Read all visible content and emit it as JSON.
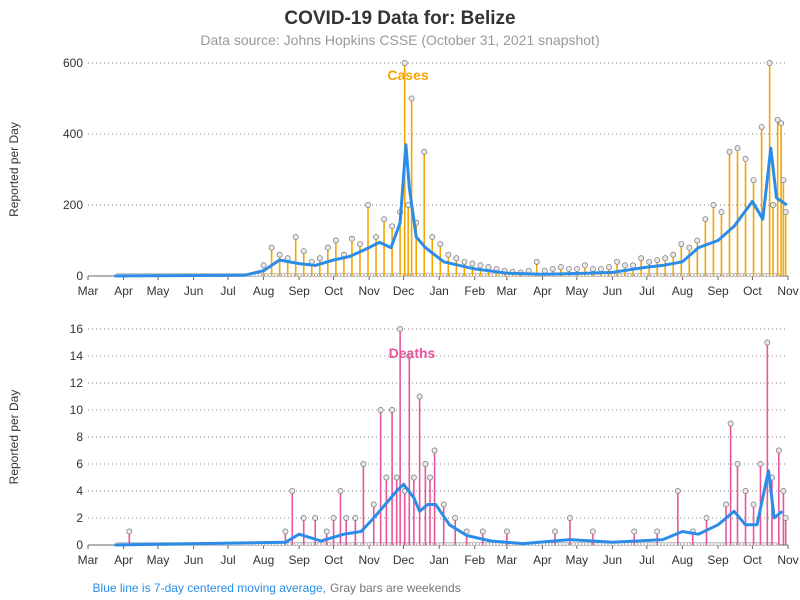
{
  "title": "COVID-19 Data for: Belize",
  "subtitle": "Data source: Johns Hopkins CSSE (October 31, 2021 snapshot)",
  "footnote": {
    "blue_text": "Blue line is 7-day centered moving average,",
    "gray_text": "Gray bars are weekends"
  },
  "colors": {
    "cases": "#f5a500",
    "deaths": "#e8559a",
    "moving_average": "#2b8de8",
    "weekend": "#999999",
    "grid": "#666666",
    "text": "#333333"
  },
  "chart_data": [
    {
      "type": "bar",
      "name": "cases-chart",
      "series_label": "Cases",
      "ylabel": "Reported per Day",
      "ylim": [
        0,
        600
      ],
      "yticks": [
        "0",
        "200",
        "400",
        "600"
      ],
      "xticks": [
        "Mar",
        "Apr",
        "May",
        "Jun",
        "Jul",
        "Aug",
        "Sep",
        "Oct",
        "Nov",
        "Dec",
        "Jan",
        "Feb",
        "Mar",
        "Apr",
        "May",
        "Jun",
        "Jul",
        "Aug",
        "Sep",
        "Oct",
        "Nov"
      ],
      "grid": "horizontal dotted",
      "bars": [
        {
          "date": "2020-08-01",
          "value": 30
        },
        {
          "date": "2020-08-08",
          "value": 80
        },
        {
          "date": "2020-08-15",
          "value": 60
        },
        {
          "date": "2020-08-22",
          "value": 50
        },
        {
          "date": "2020-08-29",
          "value": 110
        },
        {
          "date": "2020-09-05",
          "value": 70
        },
        {
          "date": "2020-09-12",
          "value": 40
        },
        {
          "date": "2020-09-19",
          "value": 50
        },
        {
          "date": "2020-09-26",
          "value": 80
        },
        {
          "date": "2020-10-03",
          "value": 100
        },
        {
          "date": "2020-10-10",
          "value": 60
        },
        {
          "date": "2020-10-17",
          "value": 105
        },
        {
          "date": "2020-10-24",
          "value": 90
        },
        {
          "date": "2020-10-31",
          "value": 200
        },
        {
          "date": "2020-11-07",
          "value": 110
        },
        {
          "date": "2020-11-14",
          "value": 160
        },
        {
          "date": "2020-11-21",
          "value": 140
        },
        {
          "date": "2020-11-28",
          "value": 180
        },
        {
          "date": "2020-12-02",
          "value": 600
        },
        {
          "date": "2020-12-05",
          "value": 200
        },
        {
          "date": "2020-12-08",
          "value": 500
        },
        {
          "date": "2020-12-12",
          "value": 150
        },
        {
          "date": "2020-12-19",
          "value": 350
        },
        {
          "date": "2020-12-26",
          "value": 110
        },
        {
          "date": "2021-01-02",
          "value": 90
        },
        {
          "date": "2021-01-09",
          "value": 60
        },
        {
          "date": "2021-01-16",
          "value": 50
        },
        {
          "date": "2021-01-23",
          "value": 40
        },
        {
          "date": "2021-01-30",
          "value": 35
        },
        {
          "date": "2021-02-06",
          "value": 30
        },
        {
          "date": "2021-02-13",
          "value": 25
        },
        {
          "date": "2021-02-20",
          "value": 20
        },
        {
          "date": "2021-02-27",
          "value": 15
        },
        {
          "date": "2021-03-06",
          "value": 12
        },
        {
          "date": "2021-03-13",
          "value": 10
        },
        {
          "date": "2021-03-20",
          "value": 15
        },
        {
          "date": "2021-03-27",
          "value": 40
        },
        {
          "date": "2021-04-03",
          "value": 15
        },
        {
          "date": "2021-04-10",
          "value": 20
        },
        {
          "date": "2021-04-17",
          "value": 25
        },
        {
          "date": "2021-04-24",
          "value": 20
        },
        {
          "date": "2021-05-01",
          "value": 20
        },
        {
          "date": "2021-05-08",
          "value": 30
        },
        {
          "date": "2021-05-15",
          "value": 20
        },
        {
          "date": "2021-05-22",
          "value": 20
        },
        {
          "date": "2021-05-29",
          "value": 25
        },
        {
          "date": "2021-06-05",
          "value": 40
        },
        {
          "date": "2021-06-12",
          "value": 30
        },
        {
          "date": "2021-06-19",
          "value": 30
        },
        {
          "date": "2021-06-26",
          "value": 50
        },
        {
          "date": "2021-07-03",
          "value": 40
        },
        {
          "date": "2021-07-10",
          "value": 45
        },
        {
          "date": "2021-07-17",
          "value": 50
        },
        {
          "date": "2021-07-24",
          "value": 60
        },
        {
          "date": "2021-07-31",
          "value": 90
        },
        {
          "date": "2021-08-07",
          "value": 80
        },
        {
          "date": "2021-08-14",
          "value": 100
        },
        {
          "date": "2021-08-21",
          "value": 160
        },
        {
          "date": "2021-08-28",
          "value": 200
        },
        {
          "date": "2021-09-04",
          "value": 180
        },
        {
          "date": "2021-09-11",
          "value": 350
        },
        {
          "date": "2021-09-18",
          "value": 360
        },
        {
          "date": "2021-09-25",
          "value": 330
        },
        {
          "date": "2021-10-02",
          "value": 270
        },
        {
          "date": "2021-10-09",
          "value": 420
        },
        {
          "date": "2021-10-16",
          "value": 600
        },
        {
          "date": "2021-10-19",
          "value": 200
        },
        {
          "date": "2021-10-23",
          "value": 440
        },
        {
          "date": "2021-10-26",
          "value": 430
        },
        {
          "date": "2021-10-28",
          "value": 270
        },
        {
          "date": "2021-10-30",
          "value": 180
        }
      ],
      "moving_average": [
        {
          "date": "2020-03-24",
          "value": 0
        },
        {
          "date": "2020-07-15",
          "value": 2
        },
        {
          "date": "2020-08-01",
          "value": 15
        },
        {
          "date": "2020-08-15",
          "value": 45
        },
        {
          "date": "2020-09-01",
          "value": 35
        },
        {
          "date": "2020-09-15",
          "value": 30
        },
        {
          "date": "2020-10-01",
          "value": 45
        },
        {
          "date": "2020-10-15",
          "value": 55
        },
        {
          "date": "2020-11-01",
          "value": 80
        },
        {
          "date": "2020-11-10",
          "value": 95
        },
        {
          "date": "2020-11-20",
          "value": 80
        },
        {
          "date": "2020-11-28",
          "value": 150
        },
        {
          "date": "2020-12-03",
          "value": 370
        },
        {
          "date": "2020-12-06",
          "value": 250
        },
        {
          "date": "2020-12-12",
          "value": 110
        },
        {
          "date": "2020-12-20",
          "value": 80
        },
        {
          "date": "2021-01-05",
          "value": 40
        },
        {
          "date": "2021-02-01",
          "value": 20
        },
        {
          "date": "2021-03-01",
          "value": 8
        },
        {
          "date": "2021-04-01",
          "value": 5
        },
        {
          "date": "2021-05-01",
          "value": 7
        },
        {
          "date": "2021-06-01",
          "value": 10
        },
        {
          "date": "2021-07-01",
          "value": 25
        },
        {
          "date": "2021-07-15",
          "value": 30
        },
        {
          "date": "2021-08-01",
          "value": 40
        },
        {
          "date": "2021-08-15",
          "value": 80
        },
        {
          "date": "2021-09-01",
          "value": 100
        },
        {
          "date": "2021-09-15",
          "value": 140
        },
        {
          "date": "2021-10-01",
          "value": 210
        },
        {
          "date": "2021-10-10",
          "value": 160
        },
        {
          "date": "2021-10-17",
          "value": 360
        },
        {
          "date": "2021-10-22",
          "value": 220
        },
        {
          "date": "2021-10-31",
          "value": 200
        }
      ]
    },
    {
      "type": "bar",
      "name": "deaths-chart",
      "series_label": "Deaths",
      "ylabel": "Reported per Day",
      "ylim": [
        0,
        16
      ],
      "yticks": [
        "0",
        "2",
        "4",
        "6",
        "8",
        "10",
        "12",
        "14",
        "16"
      ],
      "xticks": [
        "Mar",
        "Apr",
        "May",
        "Jun",
        "Jul",
        "Aug",
        "Sep",
        "Oct",
        "Nov",
        "Dec",
        "Jan",
        "Feb",
        "Mar",
        "Apr",
        "May",
        "Jun",
        "Jul",
        "Aug",
        "Sep",
        "Oct",
        "Nov"
      ],
      "grid": "horizontal dotted",
      "bars": [
        {
          "date": "2020-04-06",
          "value": 1
        },
        {
          "date": "2020-08-20",
          "value": 1
        },
        {
          "date": "2020-08-26",
          "value": 4
        },
        {
          "date": "2020-09-05",
          "value": 2
        },
        {
          "date": "2020-09-15",
          "value": 2
        },
        {
          "date": "2020-09-25",
          "value": 1
        },
        {
          "date": "2020-10-01",
          "value": 2
        },
        {
          "date": "2020-10-07",
          "value": 4
        },
        {
          "date": "2020-10-12",
          "value": 2
        },
        {
          "date": "2020-10-20",
          "value": 2
        },
        {
          "date": "2020-10-27",
          "value": 6
        },
        {
          "date": "2020-11-05",
          "value": 3
        },
        {
          "date": "2020-11-11",
          "value": 10
        },
        {
          "date": "2020-11-16",
          "value": 5
        },
        {
          "date": "2020-11-21",
          "value": 10
        },
        {
          "date": "2020-11-25",
          "value": 5
        },
        {
          "date": "2020-11-28",
          "value": 16
        },
        {
          "date": "2020-12-02",
          "value": 4
        },
        {
          "date": "2020-12-06",
          "value": 14
        },
        {
          "date": "2020-12-10",
          "value": 5
        },
        {
          "date": "2020-12-15",
          "value": 11
        },
        {
          "date": "2020-12-20",
          "value": 6
        },
        {
          "date": "2020-12-24",
          "value": 5
        },
        {
          "date": "2020-12-28",
          "value": 7
        },
        {
          "date": "2021-01-05",
          "value": 3
        },
        {
          "date": "2021-01-15",
          "value": 2
        },
        {
          "date": "2021-01-25",
          "value": 1
        },
        {
          "date": "2021-02-08",
          "value": 1
        },
        {
          "date": "2021-03-01",
          "value": 1
        },
        {
          "date": "2021-04-12",
          "value": 1
        },
        {
          "date": "2021-04-25",
          "value": 2
        },
        {
          "date": "2021-05-15",
          "value": 1
        },
        {
          "date": "2021-06-20",
          "value": 1
        },
        {
          "date": "2021-07-10",
          "value": 1
        },
        {
          "date": "2021-07-28",
          "value": 4
        },
        {
          "date": "2021-08-10",
          "value": 1
        },
        {
          "date": "2021-08-22",
          "value": 2
        },
        {
          "date": "2021-09-08",
          "value": 3
        },
        {
          "date": "2021-09-12",
          "value": 9
        },
        {
          "date": "2021-09-18",
          "value": 6
        },
        {
          "date": "2021-09-25",
          "value": 4
        },
        {
          "date": "2021-10-02",
          "value": 3
        },
        {
          "date": "2021-10-08",
          "value": 6
        },
        {
          "date": "2021-10-14",
          "value": 15
        },
        {
          "date": "2021-10-18",
          "value": 5
        },
        {
          "date": "2021-10-24",
          "value": 7
        },
        {
          "date": "2021-10-28",
          "value": 4
        },
        {
          "date": "2021-10-30",
          "value": 2
        }
      ],
      "moving_average": [
        {
          "date": "2020-03-24",
          "value": 0
        },
        {
          "date": "2020-08-20",
          "value": 0.2
        },
        {
          "date": "2020-09-01",
          "value": 0.8
        },
        {
          "date": "2020-09-20",
          "value": 0.3
        },
        {
          "date": "2020-10-10",
          "value": 0.8
        },
        {
          "date": "2020-10-25",
          "value": 1
        },
        {
          "date": "2020-11-05",
          "value": 2
        },
        {
          "date": "2020-11-15",
          "value": 3
        },
        {
          "date": "2020-11-25",
          "value": 4
        },
        {
          "date": "2020-12-01",
          "value": 4.5
        },
        {
          "date": "2020-12-10",
          "value": 3.5
        },
        {
          "date": "2020-12-15",
          "value": 2.5
        },
        {
          "date": "2020-12-22",
          "value": 3
        },
        {
          "date": "2020-12-29",
          "value": 3
        },
        {
          "date": "2021-01-10",
          "value": 1.5
        },
        {
          "date": "2021-01-25",
          "value": 0.7
        },
        {
          "date": "2021-02-15",
          "value": 0.3
        },
        {
          "date": "2021-03-15",
          "value": 0.1
        },
        {
          "date": "2021-04-25",
          "value": 0.4
        },
        {
          "date": "2021-06-01",
          "value": 0.2
        },
        {
          "date": "2021-07-15",
          "value": 0.4
        },
        {
          "date": "2021-08-01",
          "value": 1.0
        },
        {
          "date": "2021-08-15",
          "value": 0.8
        },
        {
          "date": "2021-09-01",
          "value": 1.5
        },
        {
          "date": "2021-09-15",
          "value": 2.5
        },
        {
          "date": "2021-09-25",
          "value": 1.5
        },
        {
          "date": "2021-10-05",
          "value": 1.5
        },
        {
          "date": "2021-10-15",
          "value": 5.5
        },
        {
          "date": "2021-10-20",
          "value": 2
        },
        {
          "date": "2021-10-27",
          "value": 2.5
        }
      ]
    }
  ]
}
